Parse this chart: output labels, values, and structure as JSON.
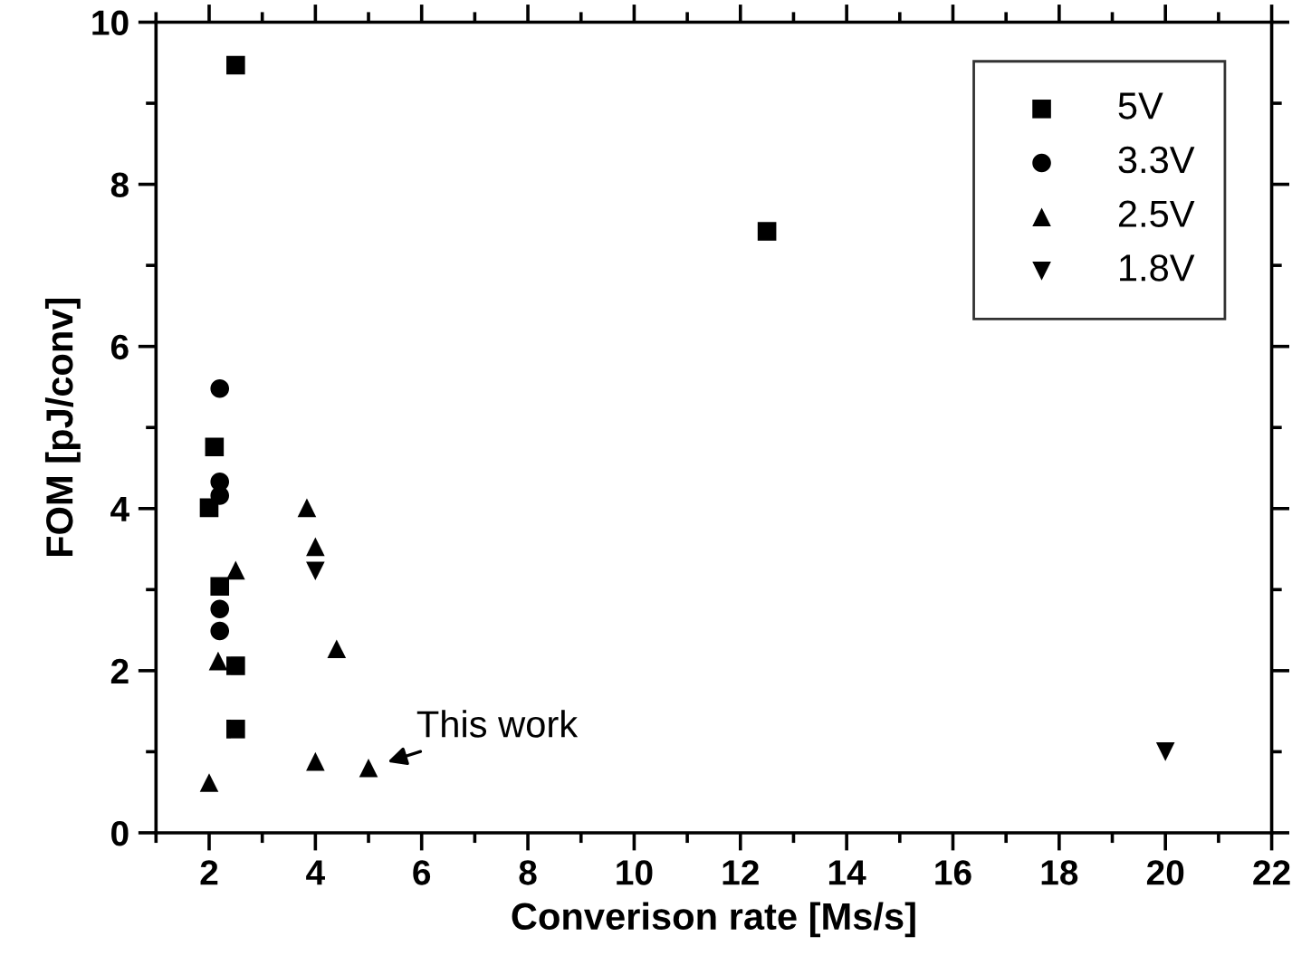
{
  "chart_data": {
    "type": "scatter",
    "xlabel": "Converison rate [Ms/s]",
    "ylabel": "FOM [pJ/conv]",
    "xlim": [
      1,
      22
    ],
    "xticks": [
      2,
      4,
      6,
      8,
      10,
      12,
      14,
      16,
      18,
      20,
      22
    ],
    "ylim": [
      0,
      10
    ],
    "yticks": [
      0,
      2,
      4,
      6,
      8,
      10
    ],
    "grid": false,
    "legend": "top right",
    "series": [
      {
        "name": "5V",
        "color": "#000000",
        "marker": "square",
        "x": [
          2.5,
          2.1,
          2.0,
          2.2,
          2.5,
          2.5,
          12.5
        ],
        "values": [
          9.47,
          4.76,
          4.01,
          3.04,
          2.06,
          1.28,
          7.42
        ]
      },
      {
        "name": "3.3V",
        "color": "#000000",
        "marker": "circle",
        "x": [
          2.2,
          2.2,
          2.2,
          2.2,
          2.2
        ],
        "values": [
          5.48,
          4.33,
          4.16,
          2.76,
          2.49
        ]
      },
      {
        "name": "2.5V",
        "color": "#000000",
        "marker": "triangle",
        "x": [
          3.84,
          4.0,
          2.5,
          2.17,
          4.4,
          4.0,
          5.0,
          2.0
        ],
        "values": [
          4.01,
          3.53,
          3.24,
          2.12,
          2.27,
          0.88,
          0.8,
          0.62
        ]
      },
      {
        "name": "1.8V",
        "color": "#000000",
        "marker": "triangle_down",
        "x": [
          4.0,
          20.0
        ],
        "values": [
          3.23,
          1.0
        ]
      }
    ],
    "annotations": [
      {
        "text": "This work",
        "x": 5.0,
        "y": 0.8
      }
    ]
  }
}
